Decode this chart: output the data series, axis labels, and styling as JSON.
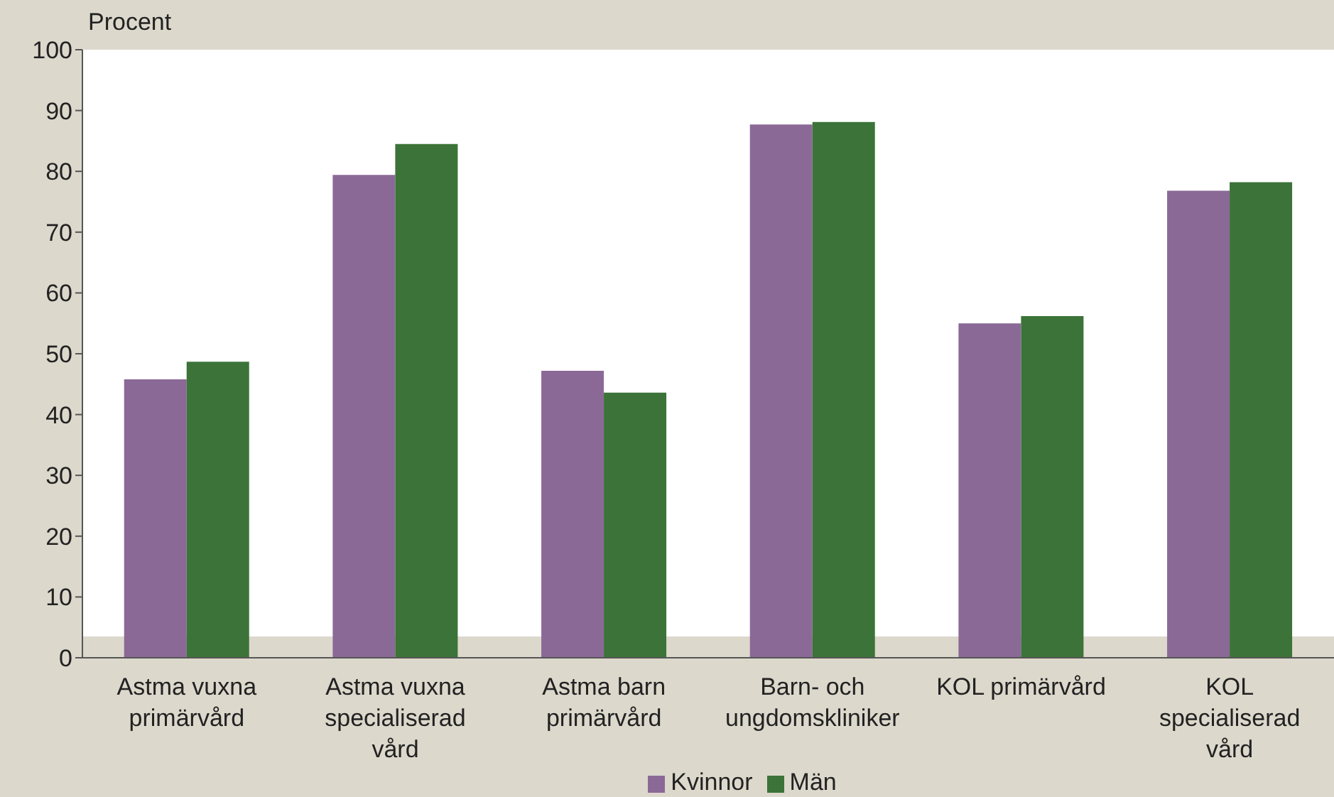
{
  "chart_data": {
    "type": "bar",
    "ylabel": "Procent",
    "categories": [
      "Astma vuxna primärvård",
      "Astma vuxna specialiserad vård",
      "Astma barn primärvård",
      "Barn- och ungdomskliniker",
      "KOL primärvård",
      "KOL specialiserad vård"
    ],
    "series": [
      {
        "name": "Kvinnor",
        "color": "#8b6996",
        "values": [
          45.8,
          79.4,
          47.2,
          87.7,
          55.0,
          76.8
        ]
      },
      {
        "name": "Män",
        "color": "#3b7338",
        "values": [
          48.7,
          84.5,
          43.6,
          88.1,
          56.2,
          78.2
        ]
      }
    ],
    "ylim": [
      0,
      100
    ],
    "yticks": [
      0,
      10,
      20,
      30,
      40,
      50,
      60,
      70,
      80,
      90,
      100
    ],
    "grid": false,
    "legend": "bottom"
  }
}
